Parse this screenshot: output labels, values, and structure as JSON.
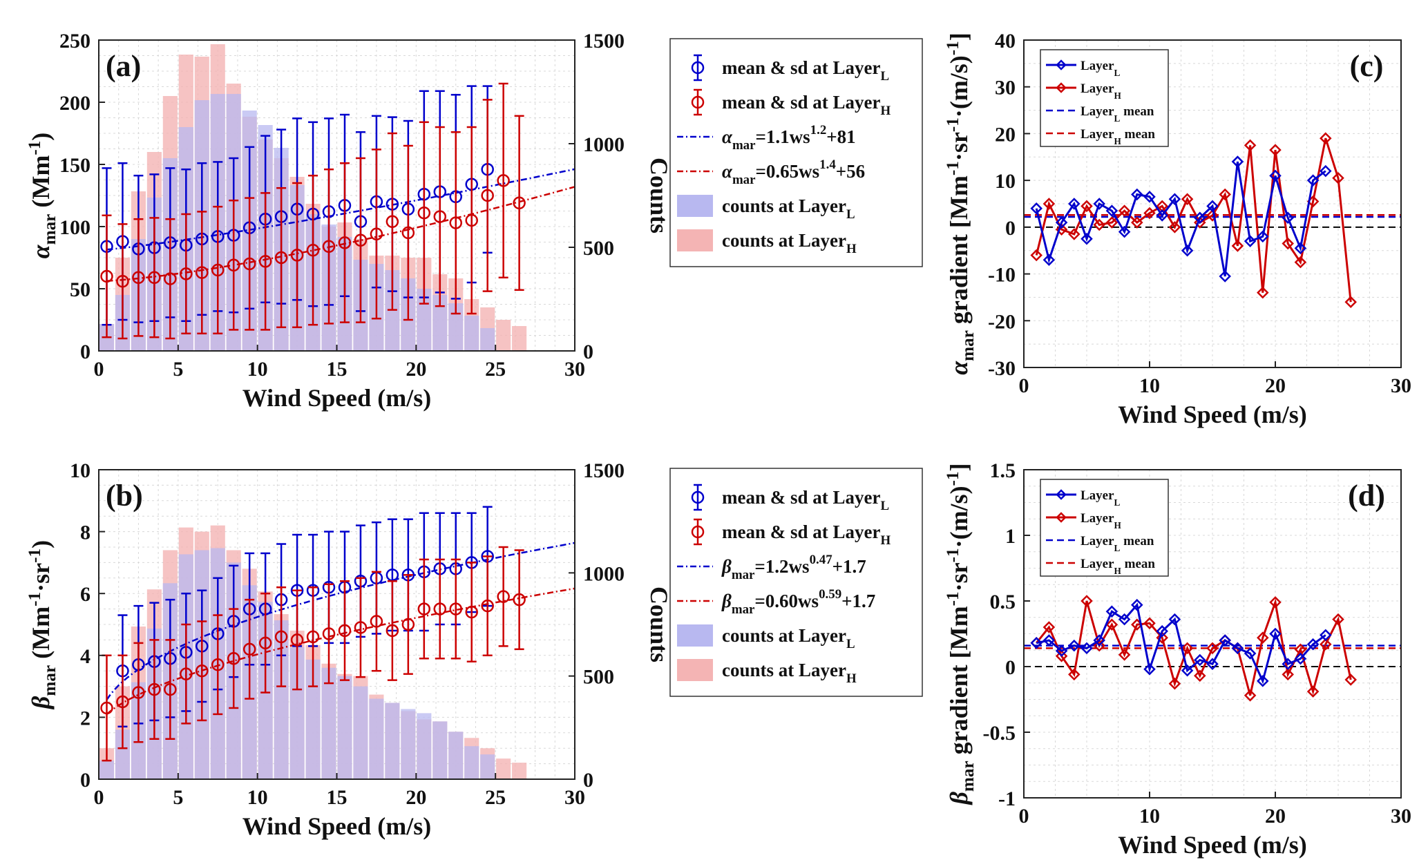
{
  "colors": {
    "blue": "#0000cc",
    "red": "#cc0000",
    "bar_blue": "#b8b8f0",
    "bar_red": "#f4b4b4"
  },
  "chart_data": [
    {
      "panel": "(a)",
      "type": "bar+errorbar+line",
      "xlabel": "Wind Speed (m/s)",
      "ylabel": "α_mar (Mm^-1)",
      "ylabel_right": "Counts",
      "xlim": [
        0,
        30
      ],
      "ylim": [
        0,
        250
      ],
      "ylim_right": [
        0,
        1500
      ],
      "xticks": [
        "0",
        "5",
        "10",
        "15",
        "20",
        "25",
        "30"
      ],
      "yticks": [
        "0",
        "50",
        "100",
        "150",
        "200",
        "250"
      ],
      "yticks_right": [
        "0",
        "500",
        "1000",
        "1500"
      ],
      "grid": true,
      "legend_position": "outside-right",
      "legend": [
        "mean & sd at Layer_L",
        "mean & sd at Layer_H",
        "α_mar=1.1ws^1.2+81",
        "α_mar=0.65ws^1.4+56",
        "counts at Layer_L",
        "counts at Layer_H"
      ],
      "fits": [
        {
          "name": "α_mar=1.1ws^1.2+81",
          "a": 1.1,
          "b": 1.2,
          "c": 81,
          "x_start": 0.5
        },
        {
          "name": "α_mar=0.65ws^1.4+56",
          "a": 0.65,
          "b": 1.4,
          "c": 56,
          "x_start": 0.5
        }
      ],
      "series": [
        {
          "name": "mean & sd at Layer_L",
          "x": [
            0.5,
            1.5,
            2.5,
            3.5,
            4.5,
            5.5,
            6.5,
            7.5,
            8.5,
            9.5,
            10.5,
            11.5,
            12.5,
            13.5,
            14.5,
            15.5,
            16.5,
            17.5,
            18.5,
            19.5,
            20.5,
            21.5,
            22.5,
            23.5,
            24.5
          ],
          "mean": [
            84,
            88,
            82,
            83,
            87,
            85,
            90,
            92,
            93,
            99,
            106,
            108,
            114,
            110,
            112,
            117,
            104,
            120,
            118,
            114,
            126,
            128,
            124,
            134,
            146
          ],
          "sd": [
            63,
            63,
            59,
            59,
            60,
            61,
            61,
            60,
            62,
            65,
            67,
            70,
            73,
            74,
            75,
            73,
            72,
            69,
            70,
            71,
            83,
            81,
            82,
            79,
            67
          ]
        },
        {
          "name": "mean & sd at Layer_H",
          "x": [
            0.5,
            1.5,
            2.5,
            3.5,
            4.5,
            5.5,
            6.5,
            7.5,
            8.5,
            9.5,
            10.5,
            11.5,
            12.5,
            13.5,
            14.5,
            15.5,
            16.5,
            17.5,
            18.5,
            19.5,
            20.5,
            21.5,
            22.5,
            23.5,
            24.5,
            25.5,
            26.5
          ],
          "mean": [
            60,
            56,
            59,
            59,
            58,
            62,
            63,
            65,
            69,
            70,
            72,
            75,
            77,
            81,
            84,
            87,
            89,
            94,
            104,
            95,
            111,
            108,
            103,
            105,
            125,
            137,
            119
          ],
          "sd": [
            49,
            46,
            47,
            48,
            48,
            48,
            49,
            51,
            52,
            53,
            55,
            56,
            58,
            60,
            62,
            64,
            66,
            68,
            71,
            70,
            73,
            72,
            73,
            75,
            77,
            78,
            70
          ]
        },
        {
          "name": "counts at Layer_L",
          "x": [
            0.5,
            1.5,
            2.5,
            3.5,
            4.5,
            5.5,
            6.5,
            7.5,
            8.5,
            9.5,
            10.5,
            11.5,
            12.5,
            13.5,
            14.5,
            15.5,
            16.5,
            17.5,
            18.5,
            19.5,
            20.5,
            21.5,
            22.5,
            23.5,
            24.5
          ],
          "values": [
            130,
            270,
            540,
            740,
            930,
            1080,
            1210,
            1240,
            1240,
            1160,
            1090,
            980,
            800,
            660,
            610,
            550,
            440,
            420,
            390,
            350,
            300,
            270,
            230,
            170,
            110
          ]
        },
        {
          "name": "counts at Layer_H",
          "x": [
            0.5,
            1.5,
            2.5,
            3.5,
            4.5,
            5.5,
            6.5,
            7.5,
            8.5,
            9.5,
            10.5,
            11.5,
            12.5,
            13.5,
            14.5,
            15.5,
            16.5,
            17.5,
            18.5,
            19.5,
            20.5,
            21.5,
            22.5,
            23.5,
            24.5,
            25.5,
            26.5
          ],
          "values": [
            130,
            450,
            770,
            960,
            1230,
            1430,
            1420,
            1480,
            1290,
            1130,
            1020,
            930,
            840,
            710,
            600,
            620,
            540,
            460,
            460,
            450,
            450,
            370,
            350,
            250,
            210,
            150,
            120
          ]
        }
      ]
    },
    {
      "panel": "(b)",
      "type": "bar+errorbar+line",
      "xlabel": "Wind Speed (m/s)",
      "ylabel": "β_mar (Mm^-1·sr^-1)",
      "ylabel_right": "Counts",
      "xlim": [
        0,
        30
      ],
      "ylim": [
        0,
        10
      ],
      "ylim_right": [
        0,
        1500
      ],
      "xticks": [
        "0",
        "5",
        "10",
        "15",
        "20",
        "25",
        "30"
      ],
      "yticks": [
        "0",
        "2",
        "4",
        "6",
        "8",
        "10"
      ],
      "yticks_right": [
        "0",
        "500",
        "1000",
        "1500"
      ],
      "grid": true,
      "legend_position": "outside-right",
      "legend": [
        "mean & sd at Layer_L",
        "mean & sd at Layer_H",
        "β_mar=1.2ws^0.47+1.7",
        "β_mar=0.60ws^0.59+1.7",
        "counts at Layer_L",
        "counts at Layer_H"
      ],
      "fits": [
        {
          "name": "β_mar=1.2ws^0.47+1.7",
          "a": 1.2,
          "b": 0.47,
          "c": 1.7,
          "x_start": 0.5
        },
        {
          "name": "β_mar=0.60ws^0.59+1.7",
          "a": 0.6,
          "b": 0.59,
          "c": 1.7,
          "x_start": 0.5
        }
      ],
      "series": [
        {
          "name": "mean & sd at Layer_L",
          "x": [
            1.5,
            2.5,
            3.5,
            4.5,
            5.5,
            6.5,
            7.5,
            8.5,
            9.5,
            10.5,
            11.5,
            12.5,
            13.5,
            14.5,
            15.5,
            16.5,
            17.5,
            18.5,
            19.5,
            20.5,
            21.5,
            22.5,
            23.5,
            24.5
          ],
          "mean": [
            3.5,
            3.7,
            3.8,
            3.9,
            4.1,
            4.3,
            4.7,
            5.1,
            5.5,
            5.5,
            5.8,
            6.1,
            6.1,
            6.2,
            6.2,
            6.4,
            6.5,
            6.6,
            6.6,
            6.7,
            6.8,
            6.8,
            7.0,
            7.2
          ],
          "sd": [
            1.8,
            1.9,
            1.9,
            1.9,
            1.9,
            1.8,
            1.8,
            1.8,
            1.8,
            1.8,
            1.8,
            1.8,
            1.8,
            1.8,
            1.8,
            1.8,
            1.8,
            1.8,
            1.8,
            1.9,
            1.8,
            1.8,
            1.6,
            1.6
          ]
        },
        {
          "name": "mean & sd at Layer_H",
          "x": [
            0.5,
            1.5,
            2.5,
            3.5,
            4.5,
            5.5,
            6.5,
            7.5,
            8.5,
            9.5,
            10.5,
            11.5,
            12.5,
            13.5,
            14.5,
            15.5,
            16.5,
            17.5,
            18.5,
            19.5,
            20.5,
            21.5,
            22.5,
            23.5,
            24.5,
            25.5,
            26.5
          ],
          "mean": [
            2.3,
            2.5,
            2.8,
            2.9,
            2.9,
            3.4,
            3.5,
            3.7,
            3.9,
            4.2,
            4.4,
            4.6,
            4.5,
            4.6,
            4.7,
            4.8,
            4.9,
            5.1,
            4.8,
            5.0,
            5.5,
            5.5,
            5.5,
            5.4,
            5.6,
            5.9,
            5.8
          ],
          "sd": [
            1.7,
            1.5,
            1.6,
            1.6,
            1.6,
            1.6,
            1.6,
            1.6,
            1.6,
            1.6,
            1.6,
            1.6,
            1.6,
            1.6,
            1.6,
            1.6,
            1.6,
            1.6,
            1.6,
            1.6,
            1.6,
            1.6,
            1.6,
            1.6,
            1.6,
            1.6,
            1.6
          ]
        },
        {
          "name": "counts at Layer_L",
          "x": [
            0.5,
            1.5,
            2.5,
            3.5,
            4.5,
            5.5,
            6.5,
            7.5,
            8.5,
            9.5,
            10.5,
            11.5,
            12.5,
            13.5,
            14.5,
            15.5,
            16.5,
            17.5,
            18.5,
            19.5,
            20.5,
            21.5,
            22.5,
            23.5,
            24.5
          ],
          "values": [
            90,
            240,
            470,
            730,
            950,
            1090,
            1110,
            1120,
            1050,
            940,
            860,
            770,
            640,
            580,
            540,
            500,
            450,
            390,
            370,
            340,
            320,
            280,
            230,
            160,
            120
          ]
        },
        {
          "name": "counts at Layer_H",
          "x": [
            0.5,
            1.5,
            2.5,
            3.5,
            4.5,
            5.5,
            6.5,
            7.5,
            8.5,
            9.5,
            10.5,
            11.5,
            12.5,
            13.5,
            14.5,
            15.5,
            16.5,
            17.5,
            18.5,
            19.5,
            20.5,
            21.5,
            22.5,
            23.5,
            24.5,
            25.5,
            26.5
          ],
          "values": [
            150,
            450,
            740,
            920,
            1110,
            1220,
            1200,
            1230,
            1110,
            1020,
            910,
            800,
            720,
            650,
            560,
            510,
            500,
            410,
            370,
            330,
            290,
            280,
            230,
            200,
            150,
            100,
            80
          ]
        }
      ]
    },
    {
      "panel": "(c)",
      "type": "line",
      "xlabel": "Wind Speed (m/s)",
      "ylabel": "α_mar gradient [Mm^-1·sr^-1·(m/s)^-1]",
      "xlim": [
        0,
        30
      ],
      "ylim": [
        -30,
        40
      ],
      "xticks": [
        "0",
        "10",
        "20",
        "30"
      ],
      "yticks": [
        "-30",
        "-20",
        "-10",
        "0",
        "10",
        "20",
        "30",
        "40"
      ],
      "grid": true,
      "legend_position": "top-left",
      "legend": [
        "Layer_L",
        "Layer_H",
        "Layer_L mean",
        "Layer_H mean"
      ],
      "means": {
        "Layer_L mean": 2.2,
        "Layer_H mean": 2.6
      },
      "series": [
        {
          "name": "Layer_L",
          "x": [
            1,
            2,
            3,
            4,
            5,
            6,
            7,
            8,
            9,
            10,
            11,
            12,
            13,
            14,
            15,
            16,
            17,
            18,
            19,
            20,
            21,
            22,
            23,
            24
          ],
          "values": [
            4,
            -7,
            1,
            5,
            -2.5,
            5,
            3.5,
            -1,
            7,
            6.5,
            2.5,
            6,
            -5,
            2,
            4.5,
            -10.5,
            14,
            -3,
            -2,
            11,
            2,
            -4.5,
            10,
            12
          ]
        },
        {
          "name": "Layer_H",
          "x": [
            1,
            2,
            3,
            4,
            5,
            6,
            7,
            8,
            9,
            10,
            11,
            12,
            13,
            14,
            15,
            16,
            17,
            18,
            19,
            20,
            21,
            22,
            23,
            24,
            25,
            26
          ],
          "values": [
            -6,
            5,
            -0.5,
            -1.5,
            4.5,
            0.5,
            1,
            3.5,
            1,
            3,
            4.5,
            0,
            6,
            1,
            2.5,
            7,
            -4,
            17.5,
            -14,
            16.5,
            -3.5,
            -7.5,
            5.5,
            19,
            10.5,
            -16
          ]
        }
      ]
    },
    {
      "panel": "(d)",
      "type": "line",
      "xlabel": "Wind Speed (m/s)",
      "ylabel": "β_mar gradient [Mm^-1·sr^-1·(m/s)^-1]",
      "xlim": [
        0,
        30
      ],
      "ylim": [
        -1,
        1.5
      ],
      "xticks": [
        "0",
        "10",
        "20",
        "30"
      ],
      "yticks": [
        "-1",
        "-0.5",
        "0",
        "0.5",
        "1",
        "1.5"
      ],
      "grid": true,
      "legend_position": "top-left",
      "legend": [
        "Layer_L",
        "Layer_H",
        "Layer_L mean",
        "Layer_H mean"
      ],
      "means": {
        "Layer_L mean": 0.16,
        "Layer_H mean": 0.14
      },
      "series": [
        {
          "name": "Layer_L",
          "x": [
            1,
            2,
            3,
            4,
            5,
            6,
            7,
            8,
            9,
            10,
            11,
            12,
            13,
            14,
            15,
            16,
            17,
            18,
            19,
            20,
            21,
            22,
            23,
            24
          ],
          "values": [
            0.18,
            0.2,
            0.12,
            0.16,
            0.14,
            0.2,
            0.42,
            0.36,
            0.47,
            -0.02,
            0.27,
            0.36,
            -0.03,
            0.05,
            0.02,
            0.2,
            0.14,
            0.1,
            -0.11,
            0.25,
            0.02,
            0.06,
            0.17,
            0.24
          ]
        },
        {
          "name": "Layer_H",
          "x": [
            1,
            2,
            3,
            4,
            5,
            6,
            7,
            8,
            9,
            10,
            11,
            12,
            13,
            14,
            15,
            16,
            17,
            18,
            19,
            20,
            21,
            22,
            23,
            24,
            25,
            26
          ],
          "values": [
            0.18,
            0.3,
            0.08,
            -0.06,
            0.5,
            0.16,
            0.32,
            0.09,
            0.32,
            0.33,
            0.22,
            -0.13,
            0.14,
            -0.07,
            0.14,
            0.2,
            0.14,
            -0.22,
            0.22,
            0.49,
            -0.06,
            0.13,
            -0.19,
            0.17,
            0.36,
            -0.1
          ]
        }
      ]
    }
  ]
}
